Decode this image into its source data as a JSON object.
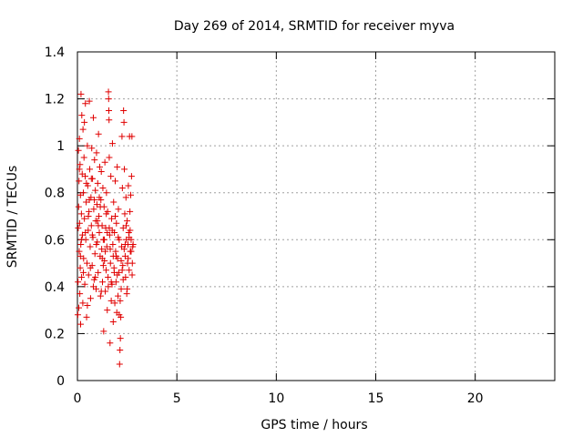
{
  "chart_data": {
    "type": "scatter",
    "title": "Day 269 of 2014, SRMTID for receiver myva",
    "xlabel": "GPS time / hours",
    "ylabel": "SRMTID / TECUs",
    "xlim": [
      0,
      24
    ],
    "ylim": [
      0,
      1.4
    ],
    "x_ticks": [
      0,
      5,
      10,
      15,
      20
    ],
    "x_tick_labels": [
      "0",
      "5",
      "10",
      "15",
      "20"
    ],
    "y_ticks": [
      0,
      0.2,
      0.4,
      0.6,
      0.8,
      1.0,
      1.2,
      1.4
    ],
    "y_tick_labels": [
      "0",
      "0.2",
      "0.4",
      "0.6",
      "0.8",
      "1",
      "1.2",
      "1.4"
    ],
    "grid": true,
    "legend": "none",
    "marker": "+",
    "marker_color": "#e00000",
    "series": [
      {
        "points": [
          [
            0.02,
            0.28
          ],
          [
            0.03,
            0.42
          ],
          [
            0.04,
            0.65
          ],
          [
            0.05,
            0.98
          ],
          [
            0.06,
            0.74
          ],
          [
            0.07,
            0.31
          ],
          [
            0.08,
            0.85
          ],
          [
            0.09,
            0.55
          ],
          [
            0.1,
            1.03
          ],
          [
            0.11,
            0.67
          ],
          [
            0.12,
            0.37
          ],
          [
            0.13,
            0.92
          ],
          [
            0.14,
            0.48
          ],
          [
            0.15,
            0.79
          ],
          [
            0.16,
            0.24
          ],
          [
            0.17,
            0.58
          ],
          [
            0.18,
            1.22
          ],
          [
            0.2,
            0.71
          ],
          [
            0.21,
            0.44
          ],
          [
            0.22,
            1.13
          ],
          [
            0.24,
            0.88
          ],
          [
            0.25,
            0.62
          ],
          [
            0.27,
            0.33
          ],
          [
            0.28,
            1.07
          ],
          [
            0.3,
            0.8
          ],
          [
            0.31,
            0.52
          ],
          [
            0.33,
            0.95
          ],
          [
            0.35,
            0.69
          ],
          [
            0.37,
            0.41
          ],
          [
            0.39,
            0.87
          ],
          [
            0.4,
            1.18
          ],
          [
            0.42,
            0.6
          ],
          [
            0.44,
            0.76
          ],
          [
            0.46,
            0.27
          ],
          [
            0.48,
            0.5
          ],
          [
            0.5,
            1.0
          ],
          [
            0.52,
            0.83
          ],
          [
            0.54,
            0.64
          ],
          [
            0.56,
            0.45
          ],
          [
            0.58,
            0.72
          ],
          [
            0.6,
            1.19
          ],
          [
            0.62,
            0.9
          ],
          [
            0.64,
            0.57
          ],
          [
            0.66,
            0.35
          ],
          [
            0.68,
            0.78
          ],
          [
            0.7,
            0.66
          ],
          [
            0.72,
            0.99
          ],
          [
            0.74,
            0.49
          ],
          [
            0.76,
            0.86
          ],
          [
            0.78,
            0.61
          ],
          [
            0.8,
            1.12
          ],
          [
            0.82,
            0.73
          ],
          [
            0.84,
            0.43
          ],
          [
            0.86,
            0.94
          ],
          [
            0.88,
            0.54
          ],
          [
            0.9,
            0.81
          ],
          [
            0.92,
            0.68
          ],
          [
            0.94,
            0.39
          ],
          [
            0.96,
            0.97
          ],
          [
            0.98,
            0.75
          ],
          [
            1.0,
            0.59
          ],
          [
            1.02,
            0.84
          ],
          [
            1.04,
            0.46
          ],
          [
            1.06,
            1.05
          ],
          [
            1.08,
            0.7
          ],
          [
            1.1,
            0.63
          ],
          [
            1.12,
            0.91
          ],
          [
            1.14,
            0.53
          ],
          [
            1.16,
            0.36
          ],
          [
            1.18,
            0.77
          ],
          [
            1.2,
            0.89
          ],
          [
            1.22,
            0.56
          ],
          [
            1.24,
            0.66
          ],
          [
            1.26,
            0.42
          ],
          [
            1.28,
            0.82
          ],
          [
            1.3,
            0.6
          ],
          [
            1.32,
            0.21
          ],
          [
            1.34,
            0.74
          ],
          [
            1.36,
            0.51
          ],
          [
            1.38,
            0.93
          ],
          [
            1.4,
            0.38
          ],
          [
            1.42,
            0.65
          ],
          [
            1.44,
            0.47
          ],
          [
            1.46,
            0.8
          ],
          [
            1.48,
            0.57
          ],
          [
            1.5,
            0.3
          ],
          [
            1.52,
            0.72
          ],
          [
            1.54,
            0.44
          ],
          [
            1.56,
            1.23
          ],
          [
            1.57,
            1.2
          ],
          [
            1.58,
            1.15
          ],
          [
            1.59,
            1.11
          ],
          [
            1.6,
            0.95
          ],
          [
            1.62,
            0.62
          ],
          [
            1.64,
            0.16
          ],
          [
            1.66,
            0.5
          ],
          [
            1.68,
            0.87
          ],
          [
            1.7,
            0.34
          ],
          [
            1.72,
            0.69
          ],
          [
            1.74,
            0.41
          ],
          [
            1.76,
            1.01
          ],
          [
            1.78,
            0.58
          ],
          [
            1.8,
            0.25
          ],
          [
            1.82,
            0.76
          ],
          [
            1.84,
            0.48
          ],
          [
            1.86,
            0.63
          ],
          [
            1.88,
            0.33
          ],
          [
            1.9,
            0.85
          ],
          [
            1.92,
            0.55
          ],
          [
            1.94,
            0.42
          ],
          [
            1.96,
            0.67
          ],
          [
            1.98,
            0.29
          ],
          [
            2.0,
            0.91
          ],
          [
            2.02,
            0.52
          ],
          [
            2.04,
            0.36
          ],
          [
            2.06,
            0.73
          ],
          [
            2.08,
            0.46
          ],
          [
            2.1,
            0.6
          ],
          [
            2.12,
            0.07
          ],
          [
            2.14,
            0.13
          ],
          [
            2.16,
            0.18
          ],
          [
            2.18,
            0.27
          ],
          [
            2.2,
            0.39
          ],
          [
            2.22,
            0.57
          ],
          [
            2.24,
            1.04
          ],
          [
            2.26,
            0.82
          ],
          [
            2.28,
            0.49
          ],
          [
            2.3,
            0.65
          ],
          [
            2.32,
            1.15
          ],
          [
            2.34,
            1.1
          ],
          [
            2.36,
            0.9
          ],
          [
            2.38,
            0.71
          ],
          [
            2.4,
            0.53
          ],
          [
            2.42,
            0.44
          ],
          [
            2.44,
            0.78
          ],
          [
            2.46,
            0.6
          ],
          [
            2.48,
            0.37
          ],
          [
            2.5,
            0.68
          ],
          [
            2.52,
            0.5
          ],
          [
            2.54,
            0.58
          ],
          [
            2.56,
            0.83
          ],
          [
            2.58,
            0.63
          ],
          [
            2.6,
            0.47
          ],
          [
            2.62,
            1.04
          ],
          [
            2.64,
            0.72
          ],
          [
            2.66,
            0.55
          ],
          [
            2.68,
            0.79
          ],
          [
            2.7,
            0.6
          ],
          [
            2.72,
            0.87
          ],
          [
            2.74,
            1.04
          ],
          [
            2.76,
            0.5
          ],
          [
            2.78,
            0.57
          ],
          [
            0.1,
            0.9
          ],
          [
            0.2,
            0.6
          ],
          [
            0.3,
            0.46
          ],
          [
            0.45,
            0.84
          ],
          [
            0.55,
            0.7
          ],
          [
            0.65,
            0.48
          ],
          [
            0.75,
            0.62
          ],
          [
            0.85,
            0.77
          ],
          [
            0.95,
            0.58
          ],
          [
            1.05,
            0.66
          ],
          [
            1.15,
            0.74
          ],
          [
            1.25,
            0.52
          ],
          [
            1.35,
            0.6
          ],
          [
            1.45,
            0.71
          ],
          [
            1.55,
            0.4
          ],
          [
            1.65,
            0.56
          ],
          [
            1.75,
            0.64
          ],
          [
            1.85,
            0.46
          ],
          [
            1.95,
            0.53
          ],
          [
            2.05,
            0.61
          ],
          [
            2.15,
            0.34
          ],
          [
            2.25,
            0.47
          ],
          [
            2.35,
            0.56
          ],
          [
            2.45,
            0.66
          ],
          [
            2.55,
            0.52
          ],
          [
            2.65,
            0.64
          ],
          [
            2.75,
            0.45
          ],
          [
            0.35,
            1.1
          ],
          [
            0.5,
            0.32
          ],
          [
            0.7,
            0.86
          ],
          [
            0.9,
            0.44
          ],
          [
            1.1,
            0.78
          ],
          [
            1.3,
            0.49
          ],
          [
            1.5,
            0.63
          ],
          [
            1.7,
            0.42
          ],
          [
            1.9,
            0.7
          ],
          [
            2.1,
            0.28
          ],
          [
            2.3,
            0.43
          ],
          [
            2.5,
            0.39
          ],
          [
            2.7,
            0.55
          ],
          [
            0.15,
            0.53
          ],
          [
            0.4,
            0.63
          ],
          [
            0.6,
            0.77
          ],
          [
            0.8,
            0.4
          ],
          [
            1.0,
            0.68
          ],
          [
            1.2,
            0.38
          ],
          [
            1.4,
            0.55
          ],
          [
            1.6,
            0.65
          ],
          [
            1.8,
            0.53
          ],
          [
            2.0,
            0.45
          ],
          [
            2.2,
            0.51
          ],
          [
            2.4,
            0.58
          ],
          [
            2.6,
            0.61
          ],
          [
            2.8,
            0.58
          ]
        ]
      }
    ]
  }
}
